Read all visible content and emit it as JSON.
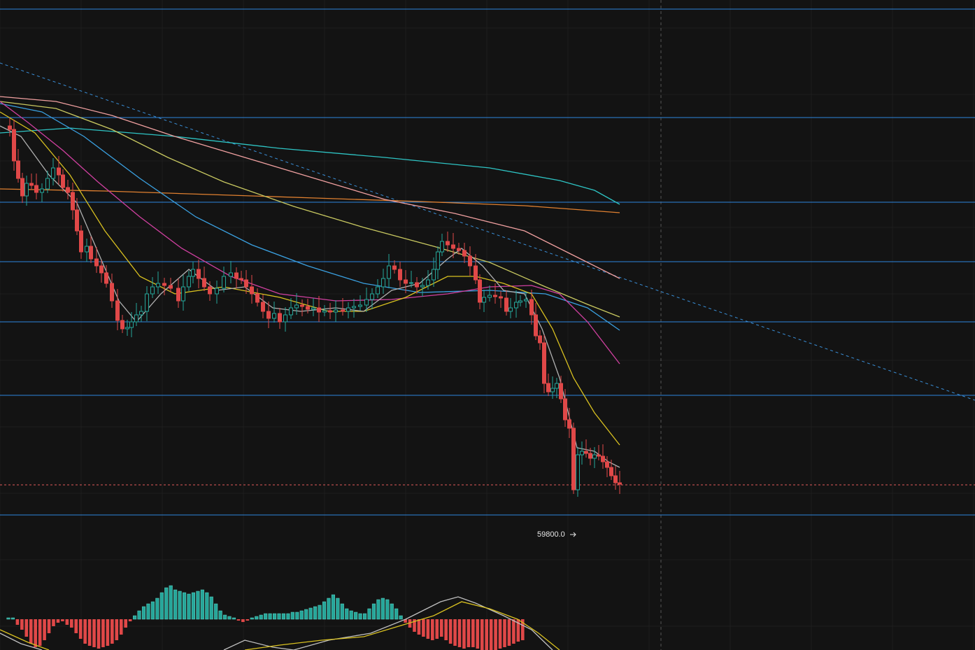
{
  "annotation": {
    "low_label": "59800.0"
  }
}
